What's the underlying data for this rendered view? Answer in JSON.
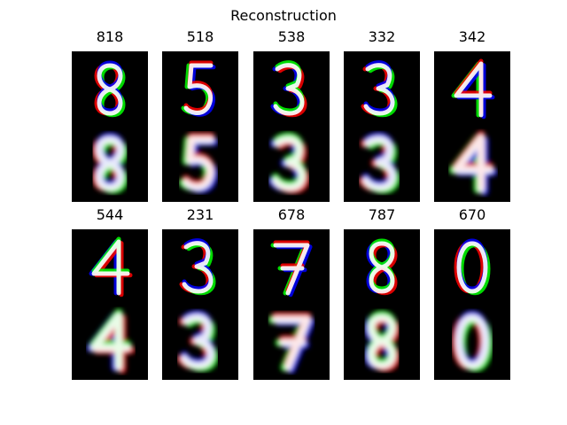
{
  "figure": {
    "title": "Reconstruction"
  },
  "panels": [
    {
      "label": "818",
      "glyph": "8"
    },
    {
      "label": "518",
      "glyph": "5"
    },
    {
      "label": "538",
      "glyph": "3"
    },
    {
      "label": "332",
      "glyph": "3"
    },
    {
      "label": "342",
      "glyph": "4"
    },
    {
      "label": "544",
      "glyph": "4"
    },
    {
      "label": "231",
      "glyph": "3"
    },
    {
      "label": "678",
      "glyph": "7"
    },
    {
      "label": "787",
      "glyph": "8"
    },
    {
      "label": "670",
      "glyph": "0"
    }
  ],
  "colors": {
    "background": "#ffffff",
    "tile_background": "#000000",
    "channels": [
      "#ff0000",
      "#00ff00",
      "#0000ff",
      "#ffffff",
      "#ff00ff"
    ]
  }
}
